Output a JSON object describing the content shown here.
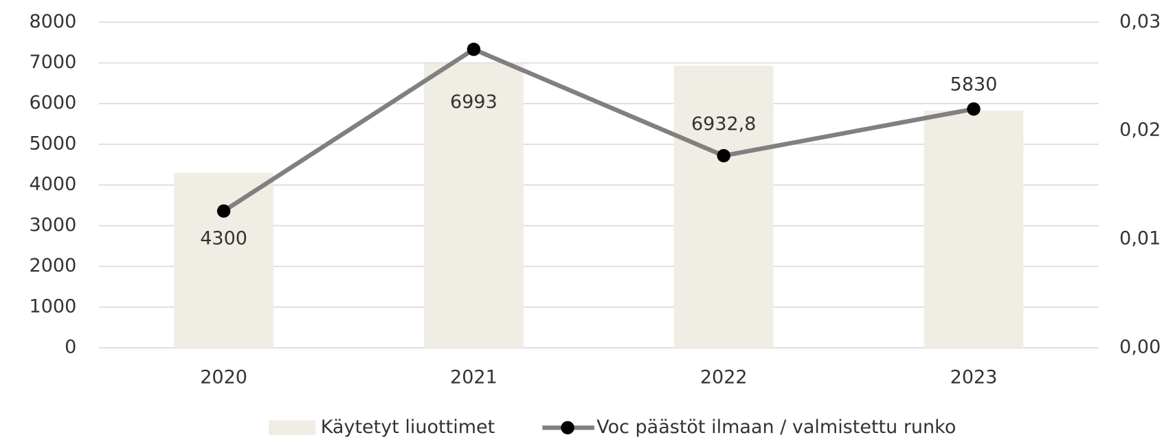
{
  "chart_data": {
    "type": "bar",
    "categories": [
      "2020",
      "2021",
      "2022",
      "2023"
    ],
    "series": [
      {
        "name": "Käytetyt liuottimet",
        "type": "bar",
        "color": "#efede4",
        "values": [
          4300,
          6993,
          6932.8,
          5830
        ],
        "value_labels": [
          "4300",
          "6993",
          "6932,8",
          "5830"
        ]
      },
      {
        "name": "Voc päästöt ilmaan / valmistettu runko",
        "type": "line",
        "axis": "y2",
        "color": "#808080",
        "marker_color": "#000000",
        "values": [
          0.0126,
          0.0275,
          0.0177,
          0.022
        ]
      }
    ],
    "ylim": [
      0,
      8000
    ],
    "yticks": [
      0,
      1000,
      2000,
      3000,
      4000,
      5000,
      6000,
      7000,
      8000
    ],
    "y2lim": [
      0,
      0.03
    ],
    "y2ticks": [
      {
        "value": 0,
        "label": "0,00"
      },
      {
        "value": 0.01,
        "label": "0,01"
      },
      {
        "value": 0.02,
        "label": "0,02"
      },
      {
        "value": 0.03,
        "label": "0,03"
      }
    ],
    "grid": true,
    "legend": "bottom"
  }
}
